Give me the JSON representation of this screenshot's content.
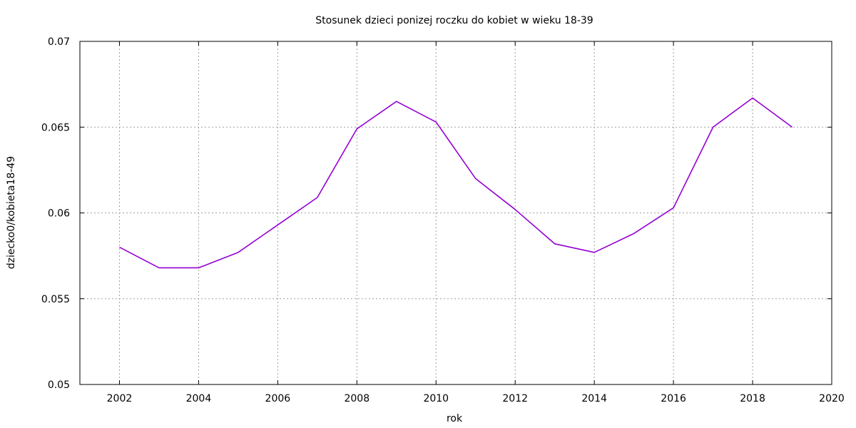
{
  "chart_data": {
    "type": "line",
    "title": "Stosunek dzieci ponizej roczku do kobiet w wieku 18-39",
    "xlabel": "rok",
    "ylabel": "dziecko0/kobieta18-49",
    "xlim": [
      2001,
      2020
    ],
    "ylim": [
      0.05,
      0.07
    ],
    "x_ticks": [
      2002,
      2004,
      2006,
      2008,
      2010,
      2012,
      2014,
      2016,
      2018,
      2020
    ],
    "x_tick_labels": [
      "2002",
      "2004",
      "2006",
      "2008",
      "2010",
      "2012",
      "2014",
      "2016",
      "2018",
      "2020"
    ],
    "y_ticks": [
      0.05,
      0.055,
      0.06,
      0.065,
      0.07
    ],
    "y_tick_labels": [
      "0.05",
      "0.055",
      "0.06",
      "0.065",
      "0.07"
    ],
    "grid": true,
    "line_color": "#9400d3",
    "series": [
      {
        "x": [
          2002,
          2003,
          2004,
          2005,
          2006,
          2007,
          2008,
          2009,
          2010,
          2011,
          2012,
          2013,
          2014,
          2015,
          2016,
          2017,
          2018,
          2019
        ],
        "values": [
          0.058,
          0.0568,
          0.0568,
          0.0577,
          0.0593,
          0.0609,
          0.0649,
          0.0665,
          0.0653,
          0.062,
          0.0602,
          0.0582,
          0.0577,
          0.0588,
          0.0603,
          0.065,
          0.0667,
          0.065
        ]
      }
    ]
  }
}
